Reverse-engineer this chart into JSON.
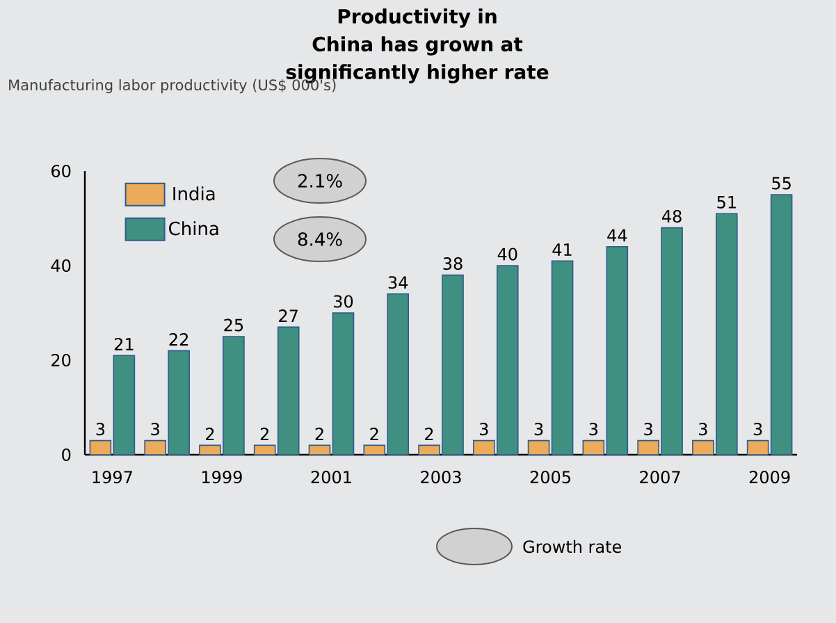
{
  "chart_data": {
    "type": "bar",
    "title": "Productivity in China has grown at significantly higher rate",
    "categories": [
      "1997",
      null,
      "1999",
      null,
      "2001",
      null,
      "2003",
      null,
      "2005",
      null,
      "2007",
      null,
      "2009"
    ],
    "series": [
      {
        "name": "India",
        "color": "#ebab5a",
        "values": [
          3,
          3,
          2,
          2,
          2,
          2,
          2,
          3,
          3,
          3,
          3,
          3,
          3
        ]
      },
      {
        "name": "China",
        "color": "#3f9080",
        "values": [
          21,
          22,
          25,
          27,
          30,
          34,
          38,
          40,
          41,
          44,
          48,
          51,
          55
        ]
      }
    ],
    "ylim": [
      0,
      60
    ],
    "yticks": [
      0,
      20,
      40,
      60
    ],
    "data_labels": true,
    "legend": "top left",
    "annotations": [
      "Manufacturing labor productivity (US$ 000's)",
      "2.1%",
      "8.4%",
      "Growth rate"
    ]
  }
}
